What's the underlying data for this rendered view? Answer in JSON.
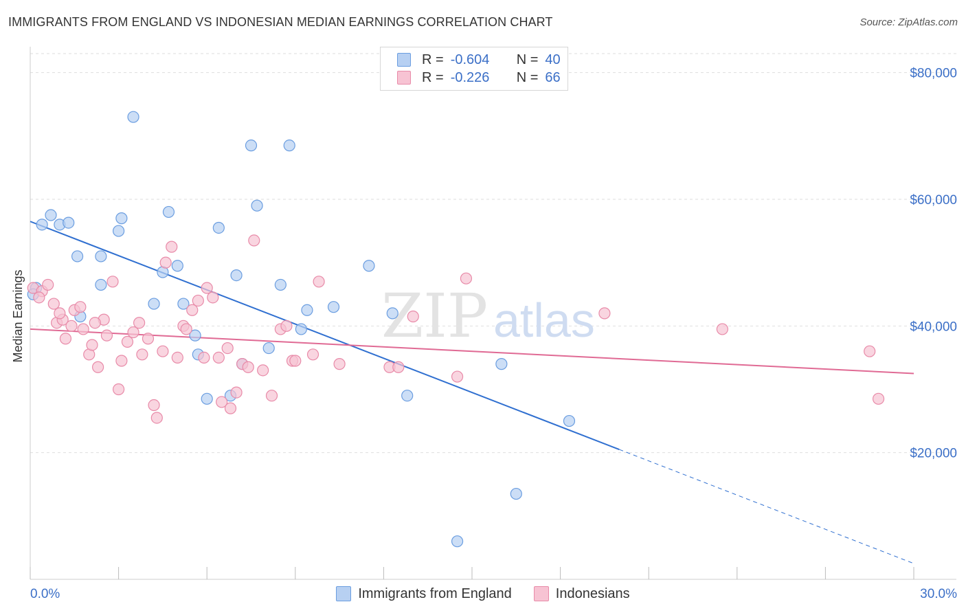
{
  "title": "IMMIGRANTS FROM ENGLAND VS INDONESIAN MEDIAN EARNINGS CORRELATION CHART",
  "source": "Source: ZipAtlas.com",
  "watermark": {
    "zip": "ZIP",
    "atlas": "atlas"
  },
  "colors": {
    "blue_fill": "#b7d0f2",
    "blue_stroke": "#6a9de0",
    "blue_line": "#2f6fd0",
    "pink_fill": "#f7c3d3",
    "pink_stroke": "#e88aa8",
    "pink_line": "#e06a94",
    "axis_label": "#3b6fc7",
    "grid": "#dedede"
  },
  "legend": {
    "rows": [
      {
        "r_label": "R =",
        "r_value": "-0.604",
        "n_label": "N =",
        "n_value": "40"
      },
      {
        "r_label": "R =",
        "r_value": "-0.226",
        "n_label": "N =",
        "n_value": "66"
      }
    ]
  },
  "chart_data": {
    "type": "scatter",
    "ylabel": "Median Earnings",
    "xlim": [
      0.0,
      30.0
    ],
    "ylim": [
      0,
      83000
    ],
    "y_ticks": [
      20000,
      40000,
      60000,
      80000
    ],
    "y_tick_labels": [
      "$20,000",
      "$40,000",
      "$60,000",
      "$80,000"
    ],
    "x_tick_labels": [
      "0.0%",
      "30.0%"
    ],
    "grid": "horizontal dashed",
    "legend_position": "top-center",
    "series": [
      {
        "name": "Immigrants from England",
        "color": "blue",
        "trend": {
          "x0": 0.0,
          "y0": 56500,
          "x1": 20.0,
          "y1": 20500,
          "dash_to_x": 30.0,
          "dash_to_y": 2500
        },
        "points": [
          [
            0.2,
            46000
          ],
          [
            0.4,
            56000
          ],
          [
            0.7,
            57500
          ],
          [
            1.0,
            56000
          ],
          [
            1.3,
            56300
          ],
          [
            1.6,
            51000
          ],
          [
            1.7,
            41500
          ],
          [
            2.4,
            51000
          ],
          [
            2.4,
            46500
          ],
          [
            3.0,
            55000
          ],
          [
            3.1,
            57000
          ],
          [
            3.5,
            73000
          ],
          [
            4.2,
            43500
          ],
          [
            4.5,
            48500
          ],
          [
            4.7,
            58000
          ],
          [
            5.0,
            49500
          ],
          [
            5.2,
            43500
          ],
          [
            5.6,
            38500
          ],
          [
            5.7,
            35500
          ],
          [
            6.0,
            28500
          ],
          [
            6.4,
            55500
          ],
          [
            6.8,
            29000
          ],
          [
            7.0,
            48000
          ],
          [
            7.2,
            34000
          ],
          [
            7.5,
            68500
          ],
          [
            7.7,
            59000
          ],
          [
            8.1,
            36500
          ],
          [
            8.5,
            46500
          ],
          [
            8.8,
            68500
          ],
          [
            9.2,
            39500
          ],
          [
            9.4,
            42500
          ],
          [
            10.3,
            43000
          ],
          [
            11.5,
            49500
          ],
          [
            12.3,
            42000
          ],
          [
            12.8,
            29000
          ],
          [
            14.5,
            6000
          ],
          [
            16.0,
            34000
          ],
          [
            16.5,
            13500
          ],
          [
            18.3,
            25000
          ],
          [
            0.1,
            45000
          ]
        ]
      },
      {
        "name": "Indonesians",
        "color": "pink",
        "trend": {
          "x0": 0.0,
          "y0": 39500,
          "x1": 30.0,
          "y1": 32500
        },
        "points": [
          [
            0.1,
            46000
          ],
          [
            0.4,
            45500
          ],
          [
            0.6,
            46500
          ],
          [
            0.8,
            43500
          ],
          [
            0.9,
            40500
          ],
          [
            1.1,
            41000
          ],
          [
            1.2,
            38000
          ],
          [
            1.4,
            40000
          ],
          [
            1.5,
            42500
          ],
          [
            1.7,
            43000
          ],
          [
            1.8,
            39500
          ],
          [
            2.0,
            35500
          ],
          [
            2.1,
            37000
          ],
          [
            2.3,
            33500
          ],
          [
            2.5,
            41000
          ],
          [
            2.6,
            38500
          ],
          [
            2.8,
            47000
          ],
          [
            3.0,
            30000
          ],
          [
            3.1,
            34500
          ],
          [
            3.3,
            37500
          ],
          [
            3.5,
            39000
          ],
          [
            3.7,
            40500
          ],
          [
            3.8,
            35500
          ],
          [
            4.0,
            38000
          ],
          [
            4.2,
            27500
          ],
          [
            4.3,
            25500
          ],
          [
            4.5,
            36000
          ],
          [
            4.6,
            50000
          ],
          [
            4.8,
            52500
          ],
          [
            5.0,
            35000
          ],
          [
            5.2,
            40000
          ],
          [
            5.3,
            39500
          ],
          [
            5.5,
            42500
          ],
          [
            5.7,
            44000
          ],
          [
            5.9,
            35000
          ],
          [
            6.0,
            46000
          ],
          [
            6.2,
            44500
          ],
          [
            6.4,
            35000
          ],
          [
            6.5,
            28000
          ],
          [
            6.7,
            36500
          ],
          [
            6.8,
            27000
          ],
          [
            7.0,
            29500
          ],
          [
            7.2,
            34000
          ],
          [
            7.4,
            33500
          ],
          [
            7.6,
            53500
          ],
          [
            7.9,
            33000
          ],
          [
            8.2,
            29000
          ],
          [
            8.5,
            39500
          ],
          [
            8.7,
            40000
          ],
          [
            8.9,
            34500
          ],
          [
            9.0,
            34500
          ],
          [
            9.6,
            35500
          ],
          [
            9.8,
            47000
          ],
          [
            10.5,
            34000
          ],
          [
            12.2,
            33500
          ],
          [
            12.5,
            33500
          ],
          [
            13.0,
            41500
          ],
          [
            14.5,
            32000
          ],
          [
            14.8,
            47500
          ],
          [
            19.5,
            42000
          ],
          [
            23.5,
            39500
          ],
          [
            28.5,
            36000
          ],
          [
            28.8,
            28500
          ],
          [
            0.3,
            44500
          ],
          [
            1.0,
            42000
          ],
          [
            2.2,
            40500
          ]
        ]
      }
    ]
  },
  "bottom_legend": {
    "items": [
      "Immigrants from England",
      "Indonesians"
    ]
  }
}
